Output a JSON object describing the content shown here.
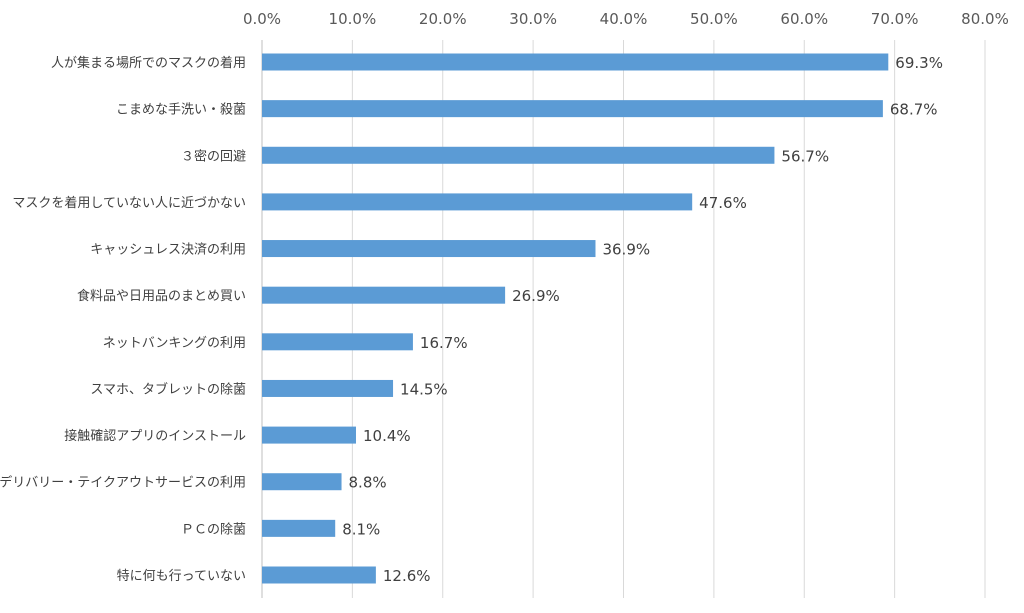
{
  "chart_data": {
    "type": "bar",
    "orientation": "horizontal",
    "title": "",
    "xlabel": "",
    "ylabel": "",
    "xlim": [
      0,
      80
    ],
    "x_ticks": [
      "0.0%",
      "10.0%",
      "20.0%",
      "30.0%",
      "40.0%",
      "50.0%",
      "60.0%",
      "70.0%",
      "80.0%"
    ],
    "x_tick_values": [
      0,
      10,
      20,
      30,
      40,
      50,
      60,
      70,
      80
    ],
    "x_axis_position": "top",
    "grid": true,
    "bar_color": "#5b9bd5",
    "categories": [
      "人が集まる場所でのマスクの着用",
      "こまめな手洗い・殺菌",
      "３密の回避",
      "マスクを着用していない人に近づかない",
      "キャッシュレス決済の利用",
      "食料品や日用品のまとめ買い",
      "ネットバンキングの利用",
      "スマホ、タブレットの除菌",
      "接触確認アプリのインストール",
      "デリバリー・テイクアウトサービスの利用",
      "ＰＣの除菌",
      "特に何も行っていない"
    ],
    "values": [
      69.3,
      68.7,
      56.7,
      47.6,
      36.9,
      26.9,
      16.7,
      14.5,
      10.4,
      8.8,
      8.1,
      12.6
    ],
    "data_labels": [
      "69.3%",
      "68.7%",
      "56.7%",
      "47.6%",
      "36.9%",
      "26.9%",
      "16.7%",
      "14.5%",
      "10.4%",
      "8.8%",
      "8.1%",
      "12.6%"
    ]
  }
}
